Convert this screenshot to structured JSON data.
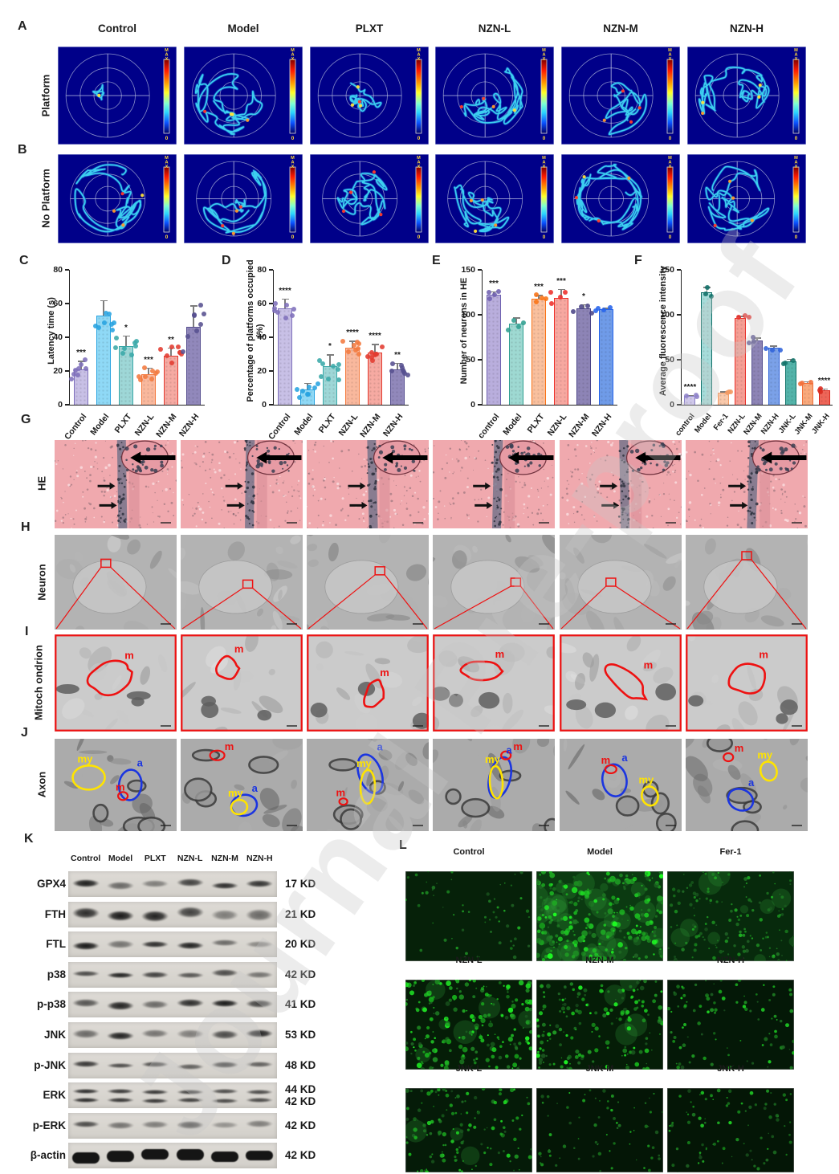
{
  "watermark": "Journal Pre-proof",
  "panel_letters": [
    "A",
    "B",
    "C",
    "D",
    "E",
    "F",
    "G",
    "H",
    "I",
    "J",
    "K",
    "L"
  ],
  "colors": {
    "maze_bg": "#000089",
    "maze_track": "#3fd6f2",
    "maze_hotspots": [
      "#ffe13a",
      "#ff9a2a",
      "#ff3a2a"
    ],
    "he_base": "#f0a9ae",
    "annotation_red": "#ee1111",
    "annotation_yellow": "#ffe400",
    "annotation_blue": "#1b35e0"
  },
  "maze": {
    "columns": [
      "Control",
      "Model",
      "PLXT",
      "NZN-L",
      "NZN-M",
      "NZN-H"
    ],
    "row_labels": [
      "Platform",
      "No Platform"
    ],
    "colorbar": {
      "max": "MAX",
      "min": "0"
    },
    "track_density": {
      "platform": [
        "sparse",
        "dense",
        "medium",
        "dense",
        "medium",
        "dense"
      ],
      "no_platform": [
        "dense",
        "dense",
        "dense",
        "dense",
        "dense",
        "dense"
      ]
    }
  },
  "chart_data": [
    {
      "panel": "C",
      "type": "bar",
      "categories": [
        "Control",
        "Model",
        "PLXT",
        "NZN-L",
        "NZN-M",
        "NZN-H"
      ],
      "values": [
        21,
        53,
        35,
        18,
        29,
        46
      ],
      "errors": [
        5,
        9,
        6,
        4,
        5,
        13
      ],
      "significance": [
        "***",
        "",
        "*",
        "***",
        "**",
        ""
      ],
      "ylabel": "Latency time (s)",
      "xlabel": "",
      "ylim": [
        0,
        80
      ],
      "yticks": [
        0,
        20,
        40,
        60,
        80
      ],
      "bar_fill": [
        "#c8c0e6",
        "#8fd9f6",
        "#9ed7d7",
        "#f9b89d",
        "#f6aaa2",
        "#9188bb"
      ],
      "bar_edge": [
        "#7e6fbb",
        "#28a3e0",
        "#3aa8a8",
        "#f37a3f",
        "#e23b30",
        "#57508f"
      ],
      "dot_counts": 8
    },
    {
      "panel": "D",
      "type": "bar",
      "categories": [
        "Control",
        "Model",
        "PLXT",
        "NZN-L",
        "NZN-M",
        "NZN-H"
      ],
      "values": [
        57,
        9,
        23,
        34,
        31,
        21
      ],
      "errors": [
        6,
        4,
        7,
        4,
        5,
        4
      ],
      "significance": [
        "****",
        "",
        "*",
        "****",
        "****",
        "**"
      ],
      "ylabel": "Percentage of platforms occupied (%)",
      "xlabel": "",
      "ylim": [
        0,
        80
      ],
      "yticks": [
        0,
        20,
        40,
        60,
        80
      ],
      "bar_fill": [
        "#c8c0e6",
        "#8fd9f6",
        "#9ed7d7",
        "#f9b89d",
        "#f6aaa2",
        "#9188bb"
      ],
      "bar_edge": [
        "#7e6fbb",
        "#28a3e0",
        "#3aa8a8",
        "#f37a3f",
        "#e23b30",
        "#57508f"
      ],
      "dot_counts": 8
    },
    {
      "panel": "E",
      "type": "bar",
      "categories": [
        "control",
        "Model",
        "PLXT",
        "NZN-L",
        "NZN-M",
        "NZN-H"
      ],
      "values": [
        122,
        90,
        118,
        119,
        107,
        106
      ],
      "errors": [
        4,
        7,
        4,
        10,
        5,
        2
      ],
      "significance": [
        "***",
        "",
        "***",
        "***",
        "*",
        ""
      ],
      "ylabel": "Number of neurons in HE",
      "xlabel": "",
      "ylim": [
        0,
        150
      ],
      "yticks": [
        0,
        50,
        100,
        150
      ],
      "bar_fill": [
        "#b9aedd",
        "#9ed9d2",
        "#f9c09e",
        "#f7a8a0",
        "#8d84b6",
        "#6f9be8"
      ],
      "bar_edge": [
        "#6f61b0",
        "#2f9e90",
        "#f97316",
        "#ee2f2a",
        "#4a4486",
        "#2563eb"
      ],
      "dot_counts": 4
    },
    {
      "panel": "F",
      "type": "bar",
      "categories": [
        "control",
        "Model",
        "Fer-1",
        "NZN-L",
        "NZN-M",
        "NZN-H",
        "JNK-L",
        "JNK-M",
        "JNK-H"
      ],
      "values": [
        10,
        125,
        13,
        96,
        71,
        63,
        48,
        24,
        16
      ],
      "errors": [
        1,
        6,
        2,
        3,
        4,
        3,
        3,
        2,
        2
      ],
      "significance": [
        "****",
        "",
        "",
        "",
        "",
        "",
        "",
        "",
        "****"
      ],
      "ylabel": "Average fluorescence intensity",
      "xlabel": "",
      "ylim": [
        0,
        150
      ],
      "yticks": [
        0,
        50,
        100,
        150
      ],
      "bar_fill": [
        "#cfc8ea",
        "#a6dcda",
        "#f9c9ab",
        "#f59e94",
        "#8d84b6",
        "#7ba1e8",
        "#53b3a9",
        "#f9a97c",
        "#ee6558"
      ],
      "bar_edge": [
        "#8f83c9",
        "#0f6f68",
        "#f29a63",
        "#e8302a",
        "#57508f",
        "#2f62d9",
        "#13746a",
        "#f2703a",
        "#d92b20"
      ],
      "dot_counts": 3
    }
  ],
  "micro_rows": {
    "labels": [
      "HE",
      "Neuron",
      "Mitoch ondrion",
      "Axon"
    ],
    "n_columns": 6,
    "annotations": {
      "mitochondrion": "m",
      "axon": "a",
      "myelin": "my"
    }
  },
  "western": {
    "panel": "K",
    "lanes": [
      "Control",
      "Model",
      "PLXT",
      "NZN-L",
      "NZN-M",
      "NZN-H"
    ],
    "rows": [
      {
        "protein": "GPX4",
        "kd": [
          "17 KD"
        ],
        "bands": [
          0.92,
          0.55,
          0.45,
          0.75,
          0.85,
          0.82
        ],
        "h": 9
      },
      {
        "protein": "FTH",
        "kd": [
          "21 KD"
        ],
        "bands": [
          0.85,
          0.95,
          0.9,
          0.75,
          0.45,
          0.55
        ],
        "h": 14
      },
      {
        "protein": "FTL",
        "kd": [
          "20 KD"
        ],
        "bands": [
          0.95,
          0.5,
          0.85,
          0.9,
          0.55,
          0.4
        ],
        "h": 9
      },
      {
        "protein": "p38",
        "kd": [
          "42 KD"
        ],
        "bands": [
          0.7,
          0.9,
          0.75,
          0.65,
          0.7,
          0.5
        ],
        "h": 8
      },
      {
        "protein": "p-p38",
        "kd": [
          "41 KD"
        ],
        "bands": [
          0.65,
          0.9,
          0.55,
          0.85,
          0.95,
          0.75
        ],
        "h": 11
      },
      {
        "protein": "JNK",
        "kd": [
          "53 KD"
        ],
        "bands": [
          0.55,
          0.9,
          0.5,
          0.45,
          0.7,
          0.9
        ],
        "h": 10
      },
      {
        "protein": "p-JNK",
        "kd": [
          "48 KD"
        ],
        "bands": [
          0.8,
          0.7,
          0.7,
          0.6,
          0.75,
          0.6
        ],
        "h": 7
      },
      {
        "protein": "ERK",
        "kd": [
          "44 KD",
          "42 KD"
        ],
        "bands": [
          0.85,
          0.8,
          0.8,
          0.75,
          0.7,
          0.7
        ],
        "h": 6,
        "double": true
      },
      {
        "protein": "p-ERK",
        "kd": [
          "42 KD"
        ],
        "bands": [
          0.7,
          0.5,
          0.45,
          0.7,
          0.35,
          0.45
        ],
        "h": 9
      },
      {
        "protein": "β-actin",
        "kd": [
          "42 KD"
        ],
        "bands": [
          1,
          1,
          1,
          1,
          1,
          1
        ],
        "h": 13,
        "solid": true
      }
    ]
  },
  "fluorescence": {
    "panel": "L",
    "cells": [
      {
        "label": "Control",
        "n": 60,
        "bright": 0.5,
        "rmax": 1.6,
        "base": "#062109",
        "blobs": 0
      },
      {
        "label": "Model",
        "n": 270,
        "bright": 1.0,
        "rmax": 3.2,
        "base": "#0b3a11",
        "blobs": 34
      },
      {
        "label": "Fer-1",
        "n": 140,
        "bright": 0.55,
        "rmax": 1.7,
        "base": "#072a0c",
        "blobs": 10
      },
      {
        "label": "NZN-L",
        "n": 210,
        "bright": 1.0,
        "rmax": 2.7,
        "base": "#051d07",
        "blobs": 6
      },
      {
        "label": "NZN-M",
        "n": 170,
        "bright": 0.9,
        "rmax": 2.2,
        "base": "#051d07",
        "blobs": 4
      },
      {
        "label": "NZN-H",
        "n": 95,
        "bright": 0.8,
        "rmax": 1.8,
        "base": "#041807",
        "blobs": 0
      },
      {
        "label": "JNK-L",
        "n": 130,
        "bright": 0.8,
        "rmax": 2.0,
        "base": "#051b08",
        "blobs": 3
      },
      {
        "label": "JNK-M",
        "n": 70,
        "bright": 0.6,
        "rmax": 1.6,
        "base": "#041606",
        "blobs": 0
      },
      {
        "label": "JNK-H",
        "n": 85,
        "bright": 0.7,
        "rmax": 1.7,
        "base": "#041606",
        "blobs": 0
      }
    ]
  }
}
